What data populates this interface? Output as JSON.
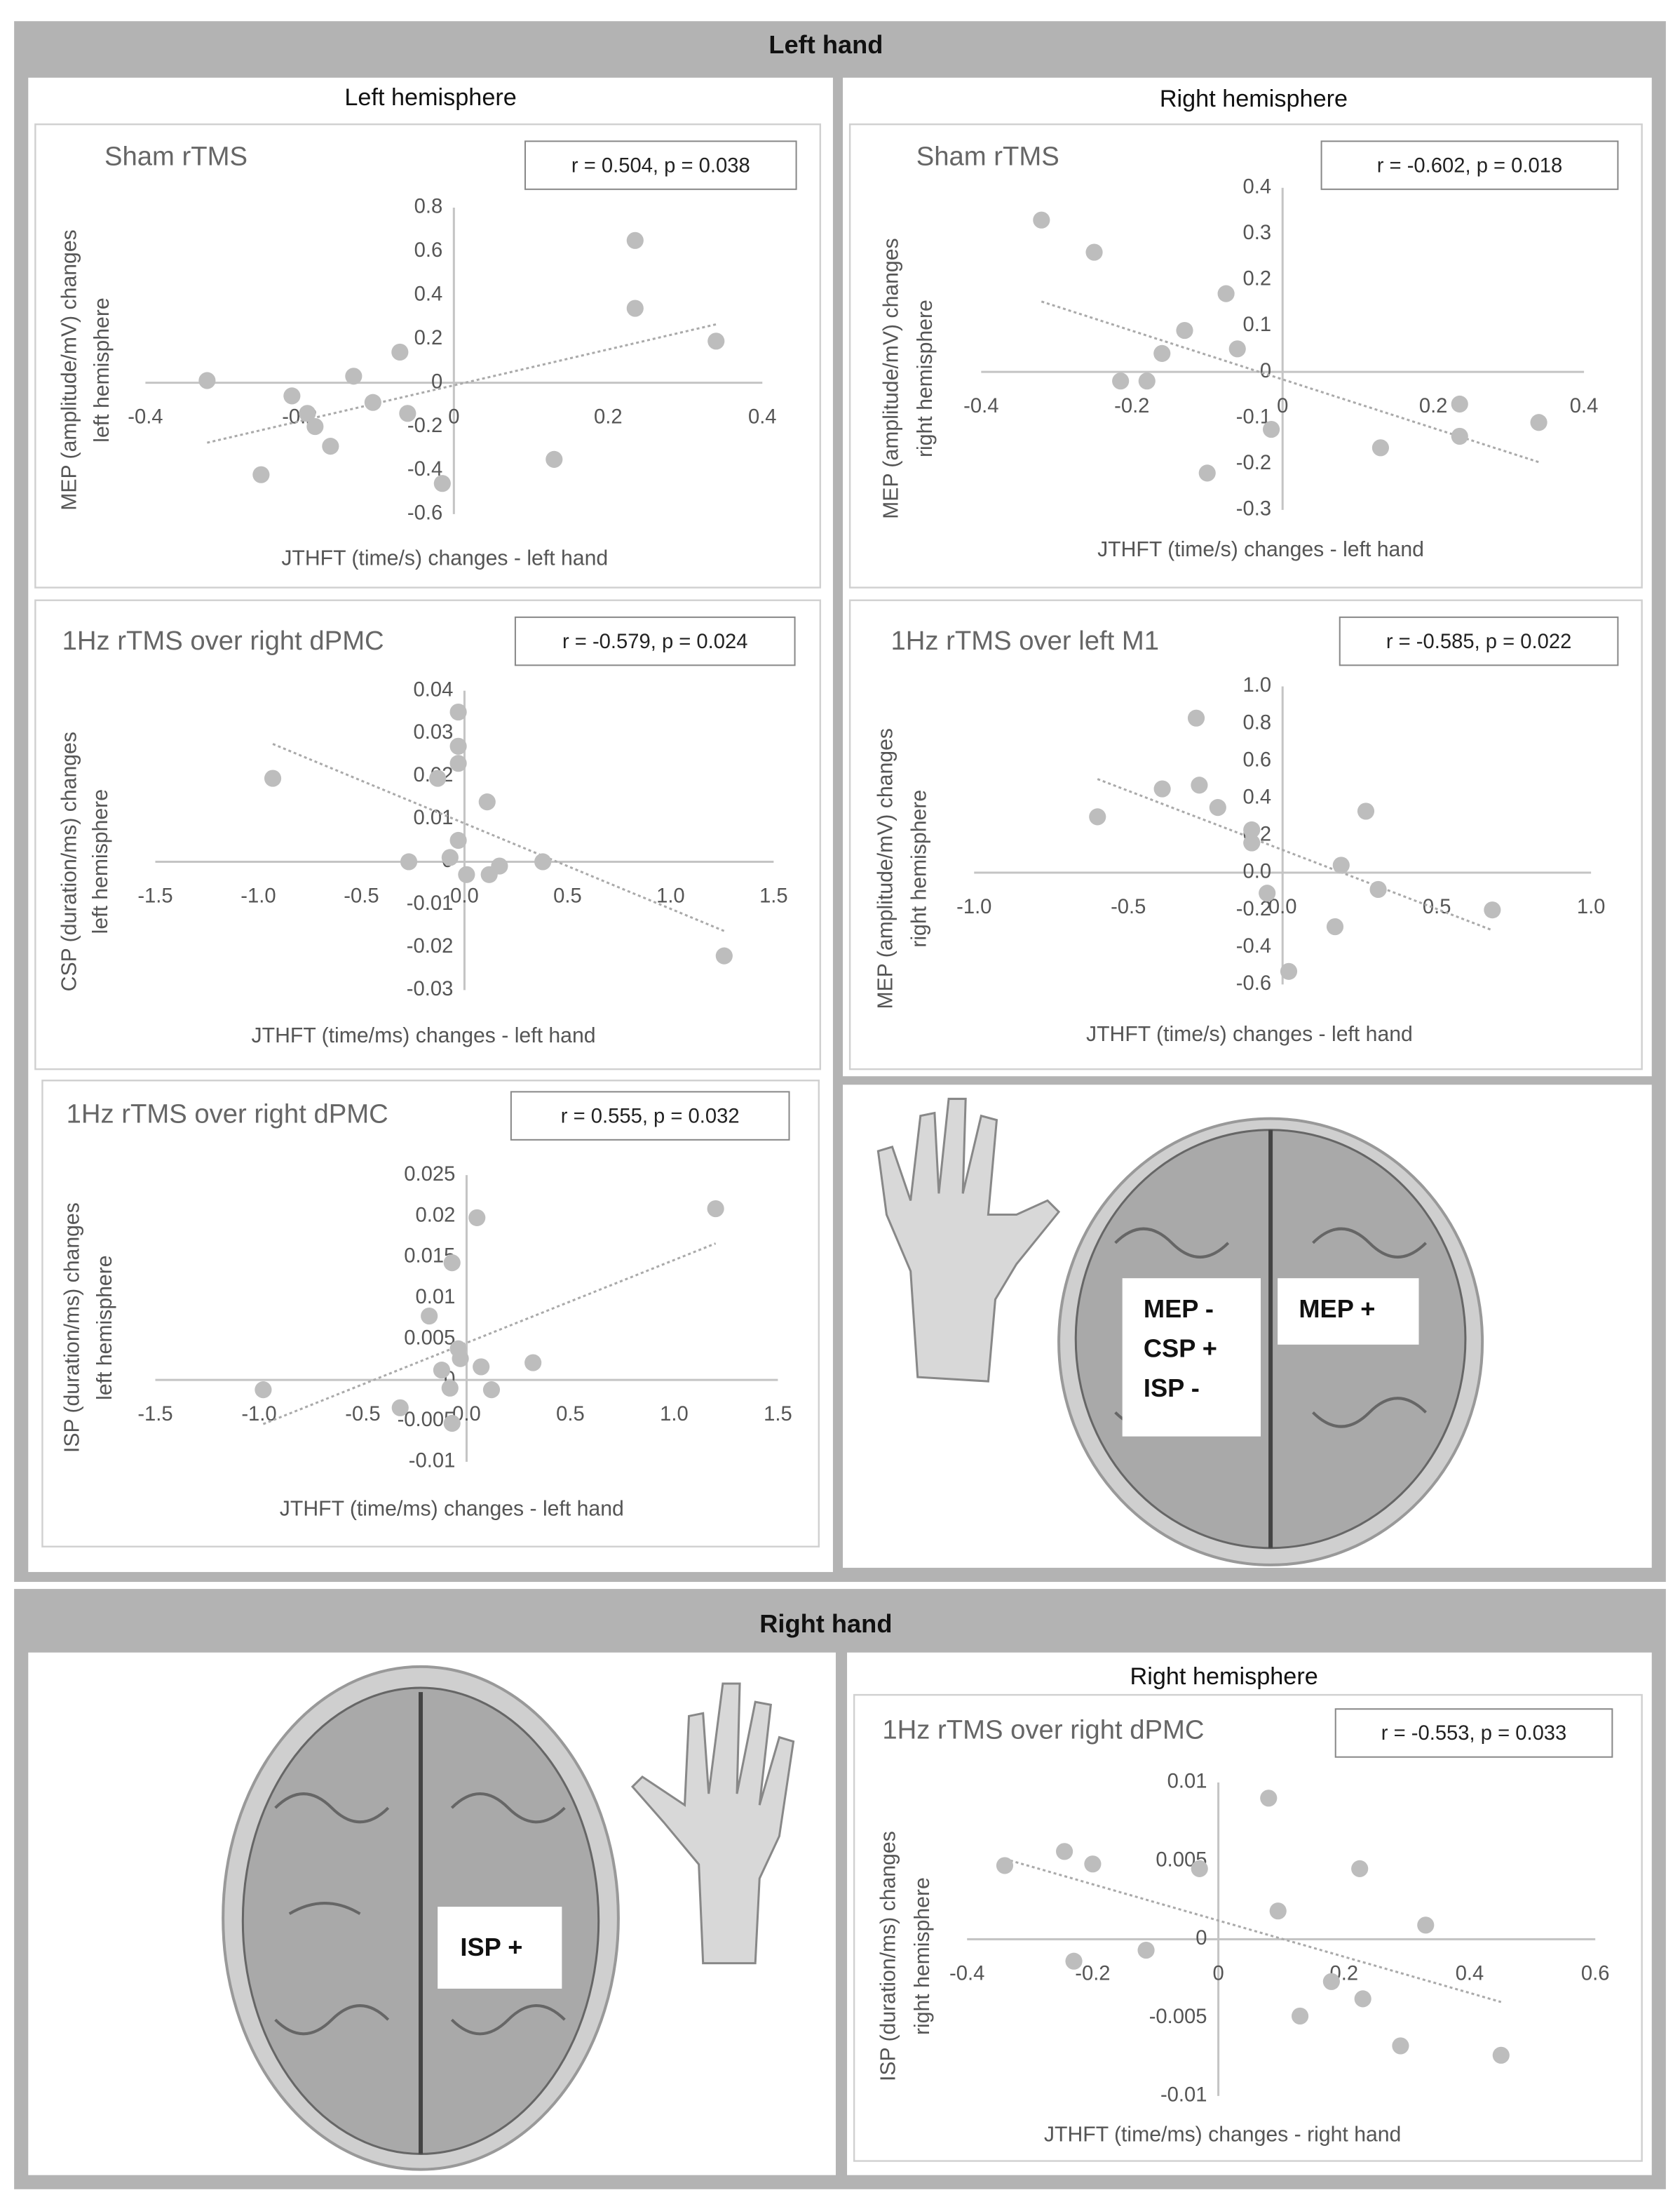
{
  "sections": [
    {
      "title": "Left hand"
    },
    {
      "title": "Right hand"
    }
  ],
  "hemisphere_labels": [
    "Left hemisphere",
    "Right hemisphere",
    "Right hemisphere"
  ],
  "brain_labels": [
    "MEP -",
    "CSP +",
    "ISP -",
    "MEP +",
    "ISP +"
  ],
  "chart_data": [
    {
      "type": "scatter",
      "title": "Sham rTMS",
      "annotation": "r = 0.504, p = 0.038",
      "xlabel": "JTHFT (time/s) changes - left hand",
      "ylabel": [
        "MEP (amplitude/mV) changes",
        "left hemisphere"
      ],
      "x": [
        -0.32,
        -0.21,
        -0.19,
        -0.18,
        -0.16,
        -0.13,
        -0.105,
        -0.07,
        -0.06,
        -0.25,
        -0.015,
        0.13,
        0.235,
        0.235,
        0.34
      ],
      "y": [
        0.01,
        -0.06,
        -0.14,
        -0.2,
        -0.29,
        0.03,
        -0.09,
        0.14,
        -0.14,
        -0.42,
        -0.46,
        -0.35,
        0.65,
        0.34,
        0.19
      ],
      "xlim": [
        -0.4,
        0.4
      ],
      "ylim": [
        -0.6,
        0.8
      ],
      "xticks": [
        -0.4,
        -0.2,
        0,
        0.2,
        0.4
      ],
      "yticks": [
        0.8,
        0.6,
        0.4,
        0.2,
        0,
        -0.2,
        -0.4,
        -0.6
      ],
      "color": "#bdbdbd",
      "trendline": true
    },
    {
      "type": "scatter",
      "title": "Sham rTMS",
      "annotation": "r = -0.602, p = 0.018",
      "xlabel": "JTHFT (time/s) changes - left hand",
      "ylabel": [
        "MEP (amplitude/mV) changes",
        "right hemisphere"
      ],
      "x": [
        -0.32,
        -0.25,
        -0.215,
        -0.18,
        -0.16,
        -0.13,
        -0.075,
        -0.06,
        -0.1,
        -0.015,
        0.13,
        0.235,
        0.235,
        0.34
      ],
      "y": [
        0.33,
        0.26,
        -0.02,
        -0.02,
        0.04,
        0.09,
        0.17,
        0.05,
        -0.22,
        -0.125,
        -0.165,
        -0.07,
        -0.14,
        -0.11
      ],
      "xlim": [
        -0.4,
        0.4
      ],
      "ylim": [
        -0.3,
        0.4
      ],
      "xticks": [
        -0.4,
        -0.2,
        0,
        0.2,
        0.4
      ],
      "yticks": [
        0.4,
        0.3,
        0.2,
        0.1,
        0,
        -0.1,
        -0.2,
        -0.3
      ],
      "color": "#bdbdbd",
      "trendline": true
    },
    {
      "type": "scatter",
      "title": "1Hz rTMS over right dPMC",
      "annotation": "r = -0.579, p = 0.024",
      "xlabel": "JTHFT (time/ms) changes - left hand",
      "ylabel": [
        "CSP (duration/ms) changes",
        "left hemisphere"
      ],
      "x": [
        -0.93,
        -0.03,
        -0.03,
        -0.03,
        -0.13,
        0.11,
        -0.27,
        -0.07,
        -0.03,
        0.01,
        0.12,
        0.17,
        0.38,
        1.26
      ],
      "y": [
        0.0195,
        0.035,
        0.027,
        0.023,
        0.0195,
        0.014,
        0,
        0.001,
        0.005,
        -0.003,
        -0.003,
        -0.001,
        0,
        -0.022
      ],
      "xlim": [
        -1.5,
        1.5
      ],
      "ylim": [
        -0.03,
        0.04
      ],
      "xticks": [
        -1.5,
        {
          "value": -1,
          "label": "-1.0"
        },
        -0.5,
        {
          "value": 0,
          "label": "0.0"
        },
        0.5,
        {
          "value": 1,
          "label": "1.0"
        },
        1.5
      ],
      "yticks": [
        0.04,
        0.03,
        0.02,
        0.01,
        0,
        -0.01,
        -0.02,
        -0.03
      ],
      "color": "#bdbdbd",
      "trendline": true
    },
    {
      "type": "scatter",
      "title": "1Hz rTMS over left M1",
      "annotation": "r = -0.585, p = 0.022",
      "xlabel": "JTHFT (time/s) changes - left hand",
      "ylabel": [
        "MEP (amplitude/mV) changes",
        "right hemisphere"
      ],
      "x": [
        -0.6,
        -0.39,
        -0.28,
        -0.27,
        -0.21,
        -0.1,
        -0.1,
        -0.05,
        0.02,
        0.17,
        0.19,
        0.27,
        0.31,
        0.68
      ],
      "y": [
        0.3,
        0.45,
        0.83,
        0.47,
        0.35,
        0.23,
        0.16,
        -0.11,
        -0.53,
        -0.29,
        0.04,
        0.33,
        -0.09,
        -0.2
      ],
      "xlim": [
        -1,
        1
      ],
      "ylim": [
        -0.6,
        1
      ],
      "xticks": [
        {
          "value": -1,
          "label": "-1.0"
        },
        -0.5,
        {
          "value": 0,
          "label": "0.0"
        },
        0.5,
        {
          "value": 1,
          "label": "1.0"
        }
      ],
      "yticks": [
        {
          "value": 1,
          "label": "1.0"
        },
        0.8,
        0.6,
        0.4,
        0.2,
        {
          "value": 0,
          "label": "0.0"
        },
        -0.2,
        -0.4,
        -0.6
      ],
      "color": "#bdbdbd",
      "trendline": true
    },
    {
      "type": "scatter",
      "title": "1Hz rTMS over right dPMC",
      "annotation": "r = 0.555, p = 0.032",
      "xlabel": "JTHFT (time/ms) changes - left hand",
      "ylabel": [
        "ISP (duration/ms) changes",
        "left hemisphere"
      ],
      "x": [
        -0.98,
        -0.18,
        -0.07,
        0.05,
        -0.32,
        -0.12,
        -0.08,
        -0.07,
        -0.04,
        -0.03,
        0.07,
        0.12,
        0.32,
        1.2
      ],
      "y": [
        -0.0012,
        0.0078,
        0.0143,
        0.0198,
        -0.0034,
        0.0012,
        -0.001,
        -0.0053,
        0.0038,
        0.0026,
        0.0016,
        -0.0012,
        0.0021,
        0.0209
      ],
      "xlim": [
        -1.5,
        1.5
      ],
      "ylim": [
        -0.01,
        0.025
      ],
      "xticks": [
        -1.5,
        {
          "value": -1,
          "label": "-1.0"
        },
        -0.5,
        {
          "value": 0,
          "label": "0.0"
        },
        0.5,
        {
          "value": 1,
          "label": "1.0"
        },
        1.5
      ],
      "yticks": [
        0.025,
        0.02,
        0.015,
        0.01,
        0.005,
        0,
        -0.005,
        -0.01
      ],
      "color": "#bdbdbd",
      "trendline": true
    },
    {
      "type": "scatter",
      "title": "1Hz rTMS over right dPMC",
      "annotation": "r = -0.553, p = 0.033",
      "xlabel": "JTHFT (time/ms) changes - right hand",
      "ylabel": [
        "ISP (duration/ms) changes",
        "right hemisphere"
      ],
      "x": [
        -0.34,
        -0.245,
        -0.2,
        -0.23,
        -0.115,
        -0.03,
        0.08,
        0.095,
        0.13,
        0.18,
        0.225,
        0.23,
        0.29,
        0.33,
        0.45
      ],
      "y": [
        0.0047,
        0.0056,
        0.0048,
        -0.0014,
        -0.0007,
        0.0045,
        0.009,
        0.0018,
        -0.0049,
        -0.0027,
        0.0045,
        -0.0038,
        -0.0068,
        0.0009,
        -0.0074
      ],
      "xlim": [
        -0.4,
        0.6
      ],
      "ylim": [
        -0.01,
        0.01
      ],
      "xticks": [
        -0.4,
        -0.2,
        0,
        0.2,
        0.4,
        0.6
      ],
      "yticks": [
        0.01,
        0.005,
        0,
        -0.005,
        -0.01
      ],
      "color": "#bdbdbd",
      "trendline": true
    }
  ]
}
